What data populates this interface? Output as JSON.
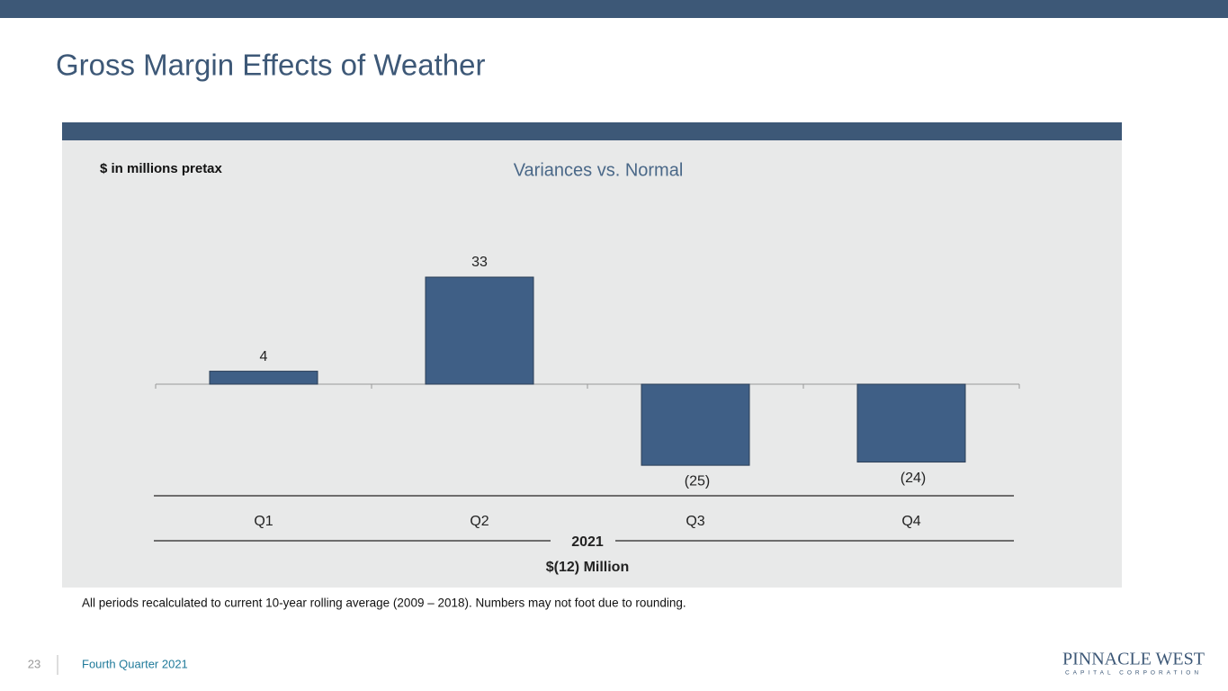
{
  "slide": {
    "title": "Gross Margin Effects of Weather",
    "footnote": "All periods recalculated to current 10-year rolling average (2009 – 2018). Numbers may not foot due to rounding.",
    "page_number": "23",
    "footer": "Fourth Quarter 2021",
    "logo": "PINNACLE WEST",
    "logo_subtitle": "CAPITAL CORPORATION"
  },
  "chart_data": {
    "type": "bar",
    "title": "Variances vs. Normal",
    "subtitle": "$ in millions pretax",
    "categories": [
      "Q1",
      "Q2",
      "Q3",
      "Q4"
    ],
    "values": [
      4,
      33,
      -25,
      -24
    ],
    "value_labels": [
      "4",
      "33",
      "(25)",
      "(24)"
    ],
    "color": "#3f5f86",
    "group_label": "2021",
    "total_label": "$(12) Million"
  }
}
